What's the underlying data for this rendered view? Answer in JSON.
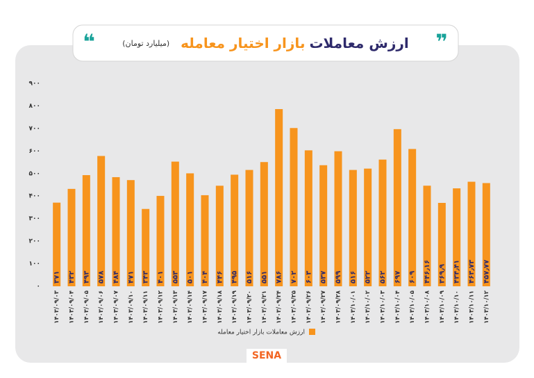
{
  "chart_data": {
    "type": "bar",
    "title": [
      "ارزش معاملات",
      "بازار اختیار معامله"
    ],
    "subtitle": "(میلیارد تومان)",
    "categories": [
      "۱۴۰۳/۰۹/۰۳",
      "۱۴۰۳/۰۹/۰۴",
      "۱۴۰۳/۰۹/۰۵",
      "۱۴۰۳/۰۹/۰۶",
      "۱۴۰۳/۰۹/۰۷",
      "۱۴۰۳/۰۹/۱۰",
      "۱۴۰۳/۰۹/۱۱",
      "۱۴۰۳/۰۹/۱۲",
      "۱۴۰۳/۰۹/۱۳",
      "۱۴۰۳/۰۹/۱۴",
      "۱۴۰۳/۰۹/۱۷",
      "۱۴۰۳/۰۹/۱۸",
      "۱۴۰۳/۰۹/۱۹",
      "۱۴۰۳/۰۹/۲۰",
      "۱۴۰۳/۰۹/۲۱",
      "۱۴۰۳/۰۹/۲۴",
      "۱۴۰۳/۰۹/۲۵",
      "۱۴۰۳/۰۹/۲۶",
      "۱۴۰۳/۰۹/۲۷",
      "۱۴۰۳/۰۹/۲۸",
      "۱۴۰۳/۱۰/۰۱",
      "۱۴۰۳/۱۰/۰۲",
      "۱۴۰۳/۱۰/۰۳",
      "۱۴۰۳/۱۰/۰۴",
      "۱۴۰۳/۱۰/۰۵",
      "۱۴۰۳/۱۰/۰۸",
      "۱۴۰۳/۱۰/۰۹",
      "۱۴۰۳/۱۰/۱۰",
      "۱۴۰۳/۱۰/۱۱",
      "۱۴۰۳/۱۰/۱۲"
    ],
    "series": [
      {
        "name": "ارزش معاملات بازار اختیار معامله",
        "color": "#f7941d",
        "values": [
          371,
          432,
          493,
          578,
          484,
          471,
          343,
          401,
          553,
          501,
          404,
          446,
          495,
          516,
          551,
          786,
          702,
          603,
          537,
          599,
          516,
          522,
          562,
          697,
          609,
          446.16,
          369.9,
          434.41,
          463.73,
          457.77
        ],
        "value_labels": [
          "۳۷۱",
          "۴۳۲",
          "۴۹۳",
          "۵۷۸",
          "۴۸۴",
          "۴۷۱",
          "۳۴۳",
          "۴۰۱",
          "۵۵۳",
          "۵۰۱",
          "۴۰۴",
          "۴۴۶",
          "۴۹۵",
          "۵۱۶",
          "۵۵۱",
          "۷۸۶",
          "۷۰۲",
          "۶۰۳",
          "۵۳۷",
          "۵۹۹",
          "۵۱۶",
          "۵۲۲",
          "۵۶۲",
          "۶۹۷",
          "۶۰۹",
          "۴۴۶٫۱۶",
          "۳۶۹٫۹",
          "۴۳۴٫۴۱",
          "۴۶۳٫۷۳",
          "۴۵۷٫۷۷"
        ]
      }
    ],
    "ylim": [
      0,
      900
    ],
    "yticks": [
      {
        "value": 0,
        "label": "۰"
      },
      {
        "value": 100,
        "label": "۱۰۰"
      },
      {
        "value": 200,
        "label": "۲۰۰"
      },
      {
        "value": 300,
        "label": "۳۰۰"
      },
      {
        "value": 400,
        "label": "۴۰۰"
      },
      {
        "value": 500,
        "label": "۵۰۰"
      },
      {
        "value": 600,
        "label": "۶۰۰"
      },
      {
        "value": 700,
        "label": "۷۰۰"
      },
      {
        "value": 800,
        "label": "۸۰۰"
      },
      {
        "value": 900,
        "label": "۹۰۰"
      }
    ],
    "logo": "SENA"
  }
}
